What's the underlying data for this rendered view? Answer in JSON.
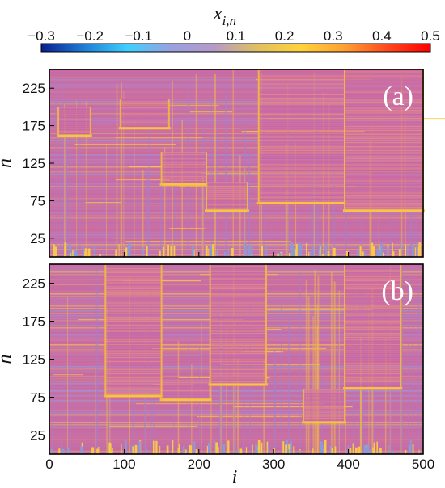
{
  "chart_data": {
    "type": "heatmap",
    "colorbar": {
      "label": "x",
      "label_subscript": "i,n",
      "range": [
        -0.3,
        0.5
      ],
      "ticks": [
        "−0.3",
        "−0.2",
        "−0.1",
        "0",
        "0.1",
        "0.2",
        "0.3",
        "0.4",
        "0.5"
      ],
      "tick_values": [
        -0.3,
        -0.2,
        -0.1,
        0,
        0.1,
        0.2,
        0.3,
        0.4,
        0.5
      ],
      "colormap": [
        "#0a1f8f",
        "#1e7fd6",
        "#3fd0ff",
        "#9aa0e0",
        "#b69ac8",
        "#e0c060",
        "#ffd23a",
        "#ffa032",
        "#ff4a1c",
        "#ff0000"
      ]
    },
    "x_axis": {
      "label": "i",
      "range": [
        0,
        500
      ],
      "ticks": [
        "0",
        "100",
        "200",
        "300",
        "400",
        "500"
      ],
      "tick_values": [
        0,
        100,
        200,
        300,
        400,
        500
      ]
    },
    "y_axis": {
      "label": "n",
      "range": [
        0,
        250
      ],
      "ticks": [
        "25",
        "75",
        "125",
        "175",
        "225"
      ],
      "tick_values": [
        25,
        75,
        125,
        175,
        225
      ]
    },
    "panels": [
      {
        "tag": "(a)",
        "domains": [
          {
            "i": [
              12,
              55
            ],
            "n": [
              160,
              200
            ]
          },
          {
            "i": [
              95,
              160
            ],
            "n": [
              170,
              210
            ]
          },
          {
            "i": [
              150,
              210
            ],
            "n": [
              95,
              140
            ]
          },
          {
            "i": [
              210,
              265
            ],
            "n": [
              60,
              100
            ]
          },
          {
            "i": [
              280,
              395
            ],
            "n": [
              70,
              250
            ]
          },
          {
            "i": [
              395,
              500
            ],
            "n": [
              60,
              250
            ]
          }
        ]
      },
      {
        "tag": "(b)",
        "domains": [
          {
            "i": [
              75,
              150
            ],
            "n": [
              75,
              250
            ]
          },
          {
            "i": [
              150,
              215
            ],
            "n": [
              70,
              100
            ]
          },
          {
            "i": [
              215,
              290
            ],
            "n": [
              90,
              250
            ]
          },
          {
            "i": [
              340,
              395
            ],
            "n": [
              40,
              85
            ]
          },
          {
            "i": [
              395,
              470
            ],
            "n": [
              85,
              250
            ]
          }
        ]
      }
    ]
  }
}
